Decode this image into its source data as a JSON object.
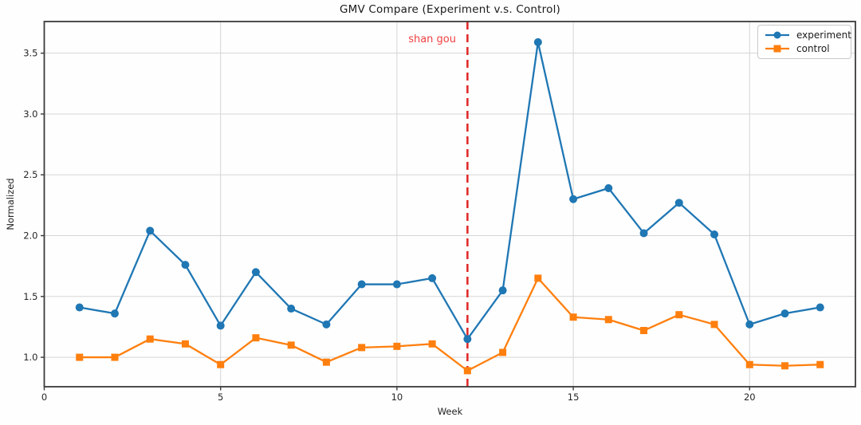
{
  "chart_data": {
    "type": "line",
    "title": "GMV Compare (Experiment v.s. Control)",
    "xlabel": "Week",
    "ylabel": "Normalized",
    "x": [
      1,
      2,
      3,
      4,
      5,
      6,
      7,
      8,
      9,
      10,
      11,
      12,
      13,
      14,
      15,
      16,
      17,
      18,
      19,
      20,
      21,
      22
    ],
    "series": [
      {
        "name": "experiment",
        "color": "#1f77b4",
        "marker": "circle",
        "values": [
          1.41,
          1.36,
          2.04,
          1.76,
          1.26,
          1.7,
          1.4,
          1.27,
          1.6,
          1.6,
          1.65,
          1.15,
          1.55,
          3.59,
          2.3,
          2.39,
          2.02,
          2.27,
          2.01,
          1.27,
          1.36,
          1.41
        ]
      },
      {
        "name": "control",
        "color": "#ff7f0e",
        "marker": "square",
        "values": [
          1.0,
          1.0,
          1.15,
          1.11,
          0.94,
          1.16,
          1.1,
          0.96,
          1.08,
          1.09,
          1.11,
          0.89,
          1.04,
          1.65,
          1.33,
          1.31,
          1.22,
          1.35,
          1.27,
          0.94,
          0.93,
          0.94
        ]
      }
    ],
    "vline": {
      "x": 12,
      "color": "#e02525",
      "style": "dashed"
    },
    "annotation": {
      "text": "shan gou",
      "x": 12,
      "color": "#ef4040"
    },
    "xticks": [
      {
        "value": 0,
        "label": "0"
      },
      {
        "value": 5,
        "label": "5"
      },
      {
        "value": 10,
        "label": "10"
      },
      {
        "value": 15,
        "label": "15"
      },
      {
        "value": 20,
        "label": "20"
      }
    ],
    "yticks": [
      {
        "value": 1.0,
        "label": "1.0"
      },
      {
        "value": 1.5,
        "label": "1.5"
      },
      {
        "value": 2.0,
        "label": "2.0"
      },
      {
        "value": 2.5,
        "label": "2.5"
      },
      {
        "value": 3.0,
        "label": "3.0"
      },
      {
        "value": 3.5,
        "label": "3.5"
      }
    ],
    "xlim": [
      0,
      23
    ],
    "ylim": [
      0.758,
      3.76
    ],
    "grid": true,
    "grid_color": "#d5d5d5",
    "spine_color": "#3a3a3a",
    "legend_position": "upper right"
  }
}
